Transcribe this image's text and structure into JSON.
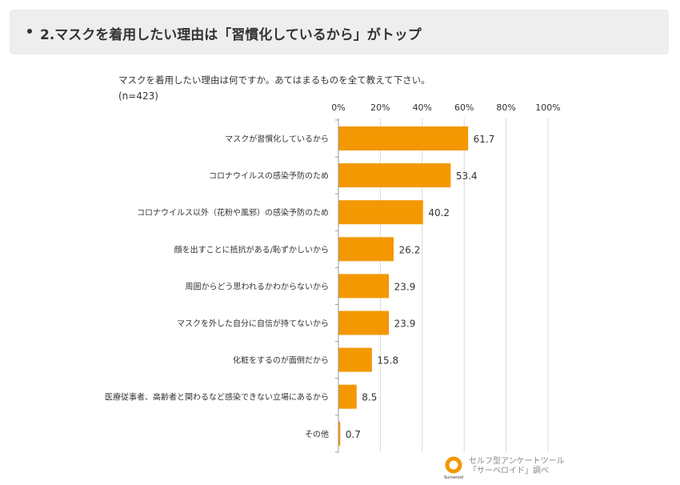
{
  "header": {
    "title": "2.マスクを着用したい理由は「習慣化しているから」がトップ"
  },
  "chart_data": {
    "type": "bar",
    "orientation": "horizontal",
    "title": "マスクを着用したい理由は何ですか。あてはまるものを全て教えて下さい。",
    "subtitle": "(n=423)",
    "categories": [
      "マスクが習慣化しているから",
      "コロナウイルスの感染予防のため",
      "コロナウイルス以外（花粉や風邪）の感染予防のため",
      "顔を出すことに抵抗がある/恥ずかしいから",
      "周囲からどう思われるかわからないから",
      "マスクを外した自分に自信が持てないから",
      "化粧をするのが面倒だから",
      "医療従事者、高齢者と関わるなど感染できない立場にあるから",
      "その他"
    ],
    "values": [
      61.7,
      53.4,
      40.2,
      26.2,
      23.9,
      23.9,
      15.8,
      8.5,
      0.7
    ],
    "value_labels": [
      "61.7",
      "53.4",
      "40.2",
      "26.2",
      "23.9",
      "23.9",
      "15.8",
      "8.5",
      "0.7"
    ],
    "xlim": [
      0,
      100
    ],
    "ticks": [
      "0%",
      "20%",
      "40%",
      "60%",
      "80%",
      "100%"
    ],
    "grid": true,
    "bar_color": "#f39800"
  },
  "footer": {
    "logo_text": "Surveroid",
    "line1": "セルフ型アンケートツール",
    "line2": "「サーベロイド」調べ"
  }
}
